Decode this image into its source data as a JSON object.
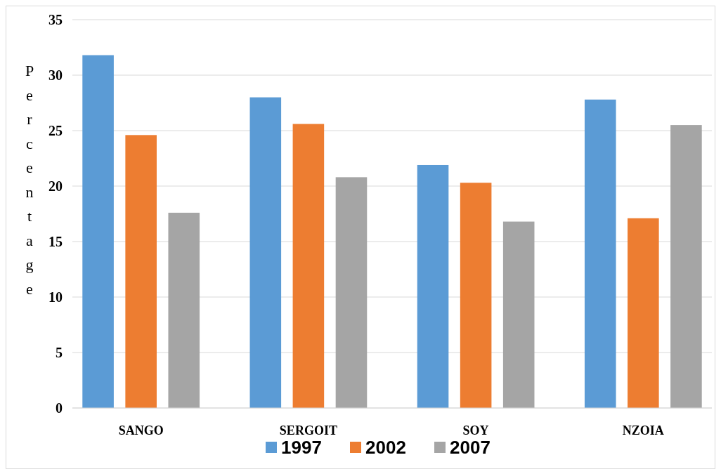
{
  "chart_data": {
    "type": "bar",
    "ylabel": "Percentage",
    "categories": [
      "SANGO",
      "SERGOIT",
      "SOY",
      "NZOIA"
    ],
    "series": [
      {
        "name": "1997",
        "color": "#5b9bd5",
        "values": [
          31.8,
          28.0,
          21.9,
          27.8
        ]
      },
      {
        "name": "2002",
        "color": "#ed7d31",
        "values": [
          24.6,
          25.6,
          20.3,
          17.1
        ]
      },
      {
        "name": "2007",
        "color": "#a5a5a5",
        "values": [
          17.6,
          20.8,
          16.8,
          25.5
        ]
      }
    ],
    "ylim": [
      0,
      35
    ],
    "yticks": [
      0,
      5,
      10,
      15,
      20,
      25,
      30,
      35
    ],
    "grid": "y",
    "legend": "bottom"
  }
}
